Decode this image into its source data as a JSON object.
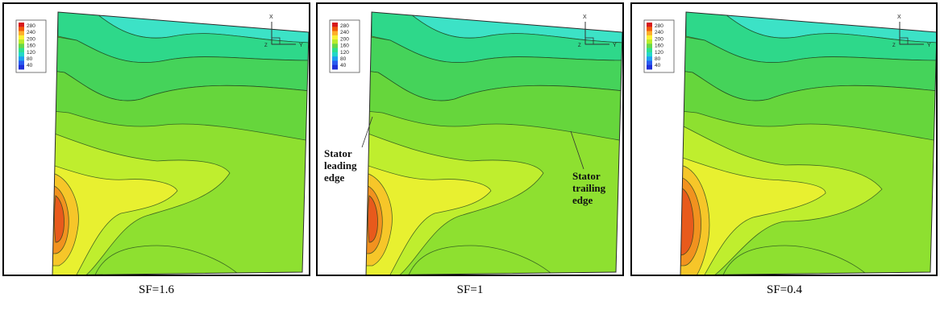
{
  "colorbar": {
    "ticks": [
      "280",
      "240",
      "200",
      "160",
      "120",
      "80",
      "40"
    ],
    "colors": [
      "#d7191c",
      "#f0590b",
      "#fdae2a",
      "#f9f134",
      "#b9ec2c",
      "#66d849",
      "#2fe08e",
      "#24d8c8",
      "#1ea0f0",
      "#2a5cf0",
      "#1f2fd8"
    ]
  },
  "axes": {
    "x_label": "X",
    "y_label": "Y",
    "z_label": "Z"
  },
  "contour_colors": {
    "c1": "#3ce2c6",
    "c2": "#2ed88a",
    "c3": "#45d35a",
    "c4": "#66d63c",
    "c5": "#8ee030",
    "c6": "#bfee2e",
    "c7": "#e8f030",
    "c8": "#f6c629",
    "c9": "#f1921f",
    "c10": "#e85a1c"
  },
  "panels": [
    {
      "caption": "SF=1.6"
    },
    {
      "caption": "SF=1"
    },
    {
      "caption": "SF=0.4"
    }
  ],
  "annotations": {
    "leading": [
      "Stator",
      "leading",
      "edge"
    ],
    "trailing": [
      "Stator",
      "trailing",
      "edge"
    ]
  }
}
